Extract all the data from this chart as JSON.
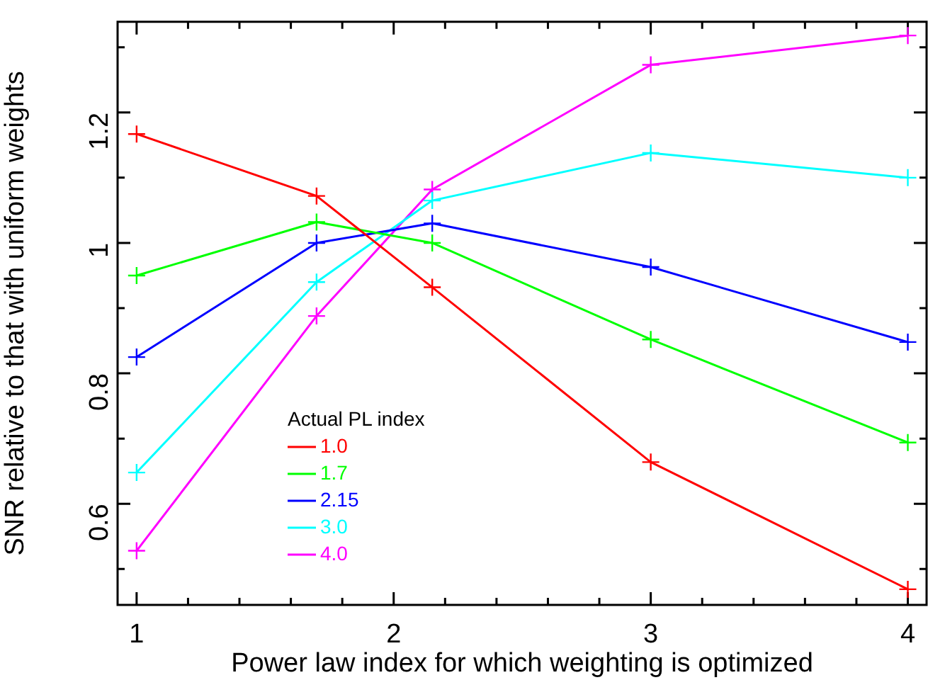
{
  "chart_data": {
    "type": "line",
    "xlabel": "Power law index for which weighting is optimized",
    "ylabel": "SNR relative to that with uniform weights",
    "legend_title": "Actual PL index",
    "legend": "bottom left",
    "marker": "cross",
    "line_style": "solid",
    "grid": false,
    "x": [
      1,
      1.7,
      2.15,
      3,
      4
    ],
    "xlim": [
      0.926,
      4.073
    ],
    "xticks": [
      1,
      {
        "value": 1.2,
        "label": null
      },
      {
        "value": 1.4,
        "label": null
      },
      {
        "value": 1.6,
        "label": null
      },
      {
        "value": 1.8,
        "label": null
      },
      2,
      {
        "value": 2.2,
        "label": null
      },
      {
        "value": 2.4,
        "label": null
      },
      {
        "value": 2.6,
        "label": null
      },
      {
        "value": 2.8,
        "label": null
      },
      3,
      {
        "value": 3.2,
        "label": null
      },
      {
        "value": 3.4,
        "label": null
      },
      {
        "value": 3.6,
        "label": null
      },
      {
        "value": 3.8,
        "label": null
      },
      4
    ],
    "ylim": [
      0.445,
      1.339
    ],
    "yticks": [
      {
        "value": 0.5,
        "label": null
      },
      0.6,
      {
        "value": 0.7,
        "label": null
      },
      0.8,
      {
        "value": 0.9,
        "label": null
      },
      1,
      {
        "value": 1.1,
        "label": null
      },
      1.2,
      {
        "value": 1.3,
        "label": null
      }
    ],
    "series": [
      {
        "name": "1.0",
        "color": "#ff0000",
        "values": [
          1.167,
          1.072,
          0.932,
          0.664,
          0.469
        ]
      },
      {
        "name": "1.7",
        "color": "#00ff00",
        "values": [
          0.95,
          1.032,
          1.0,
          0.852,
          0.694
        ]
      },
      {
        "name": "2.15",
        "color": "#0000ff",
        "values": [
          0.825,
          1.0,
          1.03,
          0.963,
          0.848
        ]
      },
      {
        "name": "3.0",
        "color": "#00ffff",
        "values": [
          0.648,
          0.94,
          1.065,
          1.138,
          1.1
        ]
      },
      {
        "name": "4.0",
        "color": "#ff00ff",
        "values": [
          0.528,
          0.888,
          1.082,
          1.273,
          1.318
        ]
      }
    ]
  }
}
